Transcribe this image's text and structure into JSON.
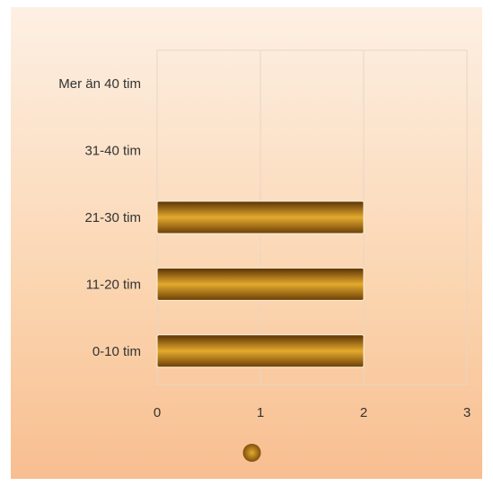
{
  "chart_data": {
    "type": "bar",
    "orientation": "horizontal",
    "categories": [
      "Mer än 40 tim",
      "31-40 tim",
      "21-30 tim",
      "11-20 tim",
      "0-10 tim"
    ],
    "series": [
      {
        "values": [
          0,
          0,
          2,
          2,
          2
        ]
      }
    ],
    "xlim": [
      0,
      3
    ],
    "x_ticks": [
      "0",
      "1",
      "2",
      "3"
    ],
    "grid": "vertical",
    "legend": "bottom-center",
    "colors": {
      "bar_dark": "#6b3e06",
      "bar_light": "#e4aa2e",
      "grid": "#e6d6c6",
      "background_top": "#fdf0e4",
      "background_bottom": "#f8be90"
    }
  }
}
